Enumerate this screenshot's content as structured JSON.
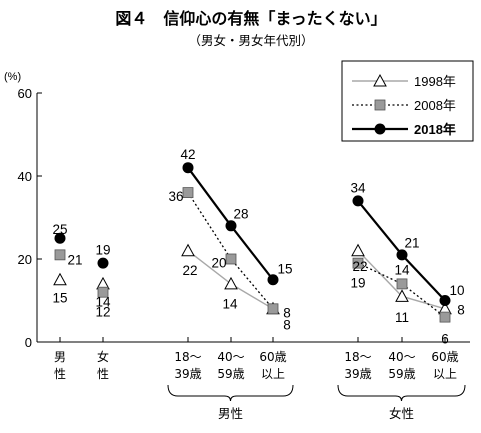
{
  "chart_data": {
    "type": "line",
    "title": "図４　信仰心の有無「まったくない」",
    "subtitle": "（男女・男女年代別）",
    "unit_label": "(%)",
    "ylim": [
      0,
      60
    ],
    "yticks": [
      0,
      20,
      40,
      60
    ],
    "categories": [
      {
        "label": "男性",
        "group": ""
      },
      {
        "label": "女性",
        "group": ""
      },
      {
        "label": "18～39歳",
        "group": "男性"
      },
      {
        "label": "40～59歳",
        "group": "男性"
      },
      {
        "label": "60歳以上",
        "group": "男性"
      },
      {
        "label": "18～39歳",
        "group": "女性"
      },
      {
        "label": "40～59歳",
        "group": "女性"
      },
      {
        "label": "60歳以上",
        "group": "女性"
      }
    ],
    "groups": [
      "男性",
      "女性"
    ],
    "series": [
      {
        "name": "1998年",
        "marker": "triangle-open",
        "line": "solid-gray",
        "values": [
          15,
          14,
          22,
          14,
          8,
          22,
          11,
          8
        ]
      },
      {
        "name": "2008年",
        "marker": "square-gray",
        "line": "dotted",
        "values": [
          21,
          12,
          36,
          20,
          8,
          19,
          14,
          6
        ]
      },
      {
        "name": "2018年",
        "marker": "circle-black",
        "line": "solid-black",
        "values": [
          25,
          19,
          42,
          28,
          15,
          34,
          21,
          10
        ]
      }
    ],
    "legend_position": "top-right",
    "grid": false
  },
  "colors": {
    "axis": "#000000",
    "series_1998_line": "#a8a8a8",
    "series_2008_marker": "#9a9a9a",
    "series_2018": "#000000"
  }
}
